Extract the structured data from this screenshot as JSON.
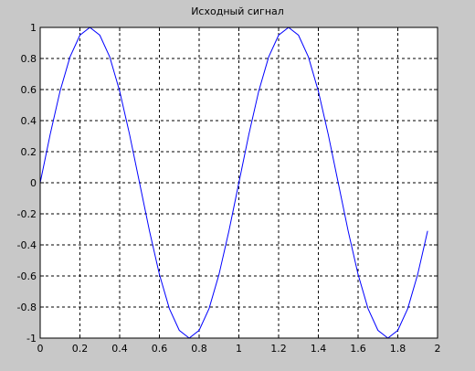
{
  "chart_data": {
    "type": "line",
    "title": "Исходный сигнал",
    "xlabel": "",
    "ylabel": "",
    "xlim": [
      0,
      2
    ],
    "ylim": [
      -1,
      1
    ],
    "x_ticks": [
      0,
      0.2,
      0.4,
      0.6,
      0.8,
      1,
      1.2,
      1.4,
      1.6,
      1.8,
      2
    ],
    "x_tick_labels": [
      "0",
      "0.2",
      "0.4",
      "0.6",
      "0.8",
      "1",
      "1.2",
      "1.4",
      "1.6",
      "1.8",
      "2"
    ],
    "y_ticks": [
      -1,
      -0.8,
      -0.6,
      -0.4,
      -0.2,
      0,
      0.2,
      0.4,
      0.6,
      0.8,
      1
    ],
    "y_tick_labels": [
      "-1",
      "-0.8",
      "-0.6",
      "-0.4",
      "-0.2",
      "0",
      "0.2",
      "0.4",
      "0.6",
      "0.8",
      "1"
    ],
    "grid": true,
    "grid_style": "dashed",
    "colors": {
      "figure_bg": "#c8c8c8",
      "axes_bg": "#ffffff",
      "line": "#0000ff",
      "grid": "#000000"
    },
    "series": [
      {
        "x": [
          0,
          0.05,
          0.1,
          0.15,
          0.2,
          0.25,
          0.3,
          0.35,
          0.4,
          0.45,
          0.5,
          0.55,
          0.6,
          0.65,
          0.7,
          0.75,
          0.8,
          0.85,
          0.9,
          0.95,
          1,
          1.05,
          1.1,
          1.15,
          1.2,
          1.25,
          1.3,
          1.35,
          1.4,
          1.45,
          1.5,
          1.55,
          1.6,
          1.65,
          1.7,
          1.75,
          1.8,
          1.85,
          1.9,
          1.95
        ],
        "y": [
          0,
          0.31,
          0.59,
          0.81,
          0.95,
          1,
          0.95,
          0.81,
          0.59,
          0.31,
          0,
          -0.31,
          -0.59,
          -0.81,
          -0.95,
          -1,
          -0.95,
          -0.81,
          -0.59,
          -0.31,
          0,
          0.31,
          0.59,
          0.81,
          0.95,
          1,
          0.95,
          0.81,
          0.59,
          0.31,
          0,
          -0.31,
          -0.59,
          -0.81,
          -0.95,
          -1,
          -0.95,
          -0.81,
          -0.59,
          -0.31
        ]
      }
    ]
  }
}
